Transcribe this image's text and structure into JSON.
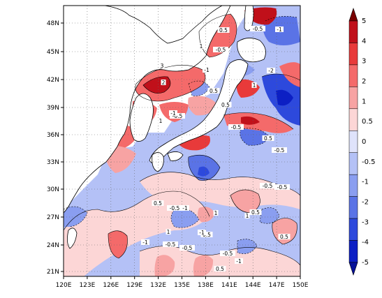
{
  "map": {
    "lat_ticks": [
      "48N",
      "45N",
      "42N",
      "39N",
      "36N",
      "33N",
      "30N",
      "27N",
      "24N",
      "21N"
    ],
    "lon_ticks": [
      "120E",
      "123E",
      "126E",
      "129E",
      "132E",
      "135E",
      "138E",
      "141E",
      "144E",
      "147E",
      "150E"
    ],
    "extent": {
      "lon": [
        120,
        150
      ],
      "lat": [
        20,
        50
      ]
    },
    "contour_labels": [
      "0.5",
      "-0.5",
      "-1",
      "1",
      "2",
      "3",
      "0.5",
      "-0.5",
      "-1",
      "-2",
      "1",
      "0.5",
      "-0.5",
      "-1",
      "1",
      "-0.5",
      "0.5",
      "-0.5",
      "-0.5",
      "0.5",
      "-1",
      "1",
      "0.5",
      "-0.5",
      "0.5",
      "-0.5",
      "1",
      "-0.5",
      "-1",
      "-0.5",
      "0.5",
      "1",
      "0.5",
      "-1",
      "-1",
      "-0.5"
    ],
    "grid": "dotted"
  },
  "colorbar": {
    "labels": [
      "5",
      "4",
      "3",
      "2",
      "1",
      "0.5",
      "0",
      "-0.5",
      "-1",
      "-2",
      "-3",
      "-4",
      "-5"
    ],
    "colors": [
      "#7a0000",
      "#c0101a",
      "#e83a3a",
      "#f46a6a",
      "#f7a3a3",
      "#fcd6d6",
      "#dfe3fb",
      "#b4c1f6",
      "#8a9ef0",
      "#5a73e6",
      "#2d49dc",
      "#0c1fc4",
      "#061199"
    ]
  }
}
